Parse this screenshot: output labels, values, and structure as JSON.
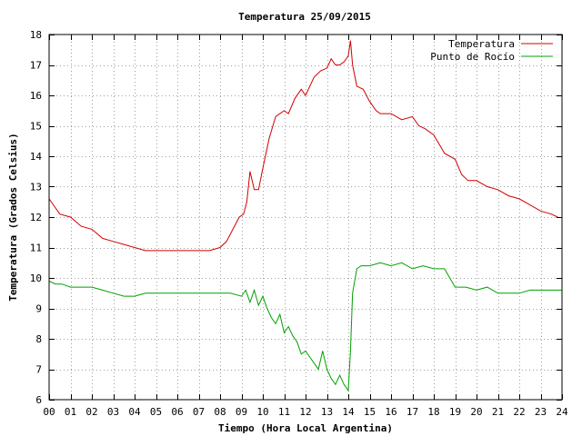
{
  "chart_data": {
    "type": "line",
    "title": "Temperatura 25/09/2015",
    "xlabel": "Tiempo (Hora Local Argentina)",
    "ylabel": "Temperatura (Grados Celsius)",
    "xlim": [
      0,
      24
    ],
    "ylim": [
      6,
      18
    ],
    "x_ticks": [
      "00",
      "01",
      "02",
      "03",
      "04",
      "05",
      "06",
      "07",
      "08",
      "09",
      "10",
      "11",
      "12",
      "13",
      "14",
      "15",
      "16",
      "17",
      "18",
      "19",
      "20",
      "21",
      "22",
      "23",
      "24"
    ],
    "y_ticks": [
      "6",
      "7",
      "8",
      "9",
      "10",
      "11",
      "12",
      "13",
      "14",
      "15",
      "16",
      "17",
      "18"
    ],
    "grid": true,
    "legend_position": "top-right",
    "series": [
      {
        "name": "Temperatura",
        "color": "#d00000",
        "x": [
          0,
          0.2,
          0.5,
          1.0,
          1.5,
          2.0,
          2.5,
          3.0,
          3.5,
          4.0,
          4.5,
          5.0,
          5.5,
          6.0,
          6.5,
          7.0,
          7.5,
          8.0,
          8.3,
          8.6,
          8.9,
          9.1,
          9.25,
          9.4,
          9.6,
          9.8,
          10.0,
          10.3,
          10.6,
          11.0,
          11.2,
          11.5,
          11.8,
          12.0,
          12.2,
          12.4,
          12.7,
          13.0,
          13.2,
          13.4,
          13.6,
          13.8,
          14.0,
          14.1,
          14.2,
          14.4,
          14.7,
          15.0,
          15.3,
          15.5,
          16.0,
          16.5,
          17.0,
          17.3,
          17.6,
          18.0,
          18.5,
          19.0,
          19.3,
          19.6,
          20.0,
          20.5,
          21.0,
          21.5,
          22.0,
          22.5,
          23.0,
          23.5,
          23.8
        ],
        "values": [
          12.6,
          12.4,
          12.1,
          12.0,
          11.7,
          11.6,
          11.3,
          11.2,
          11.1,
          11.0,
          10.9,
          10.9,
          10.9,
          10.9,
          10.9,
          10.9,
          10.9,
          11.0,
          11.2,
          11.6,
          12.0,
          12.1,
          12.5,
          13.5,
          12.9,
          12.9,
          13.6,
          14.6,
          15.3,
          15.5,
          15.4,
          15.9,
          16.2,
          16.0,
          16.3,
          16.6,
          16.8,
          16.9,
          17.2,
          17.0,
          17.0,
          17.1,
          17.3,
          17.8,
          17.0,
          16.3,
          16.2,
          15.8,
          15.5,
          15.4,
          15.4,
          15.2,
          15.3,
          15.0,
          14.9,
          14.7,
          14.1,
          13.9,
          13.4,
          13.2,
          13.2,
          13.0,
          12.9,
          12.7,
          12.6,
          12.4,
          12.2,
          12.1,
          12.0
        ]
      },
      {
        "name": "Punto de Rocío",
        "color": "#00a000",
        "x": [
          0,
          0.3,
          0.6,
          1.0,
          1.5,
          2.0,
          2.5,
          3.0,
          3.5,
          4.0,
          4.5,
          5.0,
          5.5,
          6.0,
          6.5,
          7.0,
          7.5,
          8.0,
          8.5,
          9.0,
          9.2,
          9.4,
          9.6,
          9.8,
          10.0,
          10.2,
          10.4,
          10.6,
          10.8,
          11.0,
          11.2,
          11.4,
          11.6,
          11.8,
          12.0,
          12.2,
          12.4,
          12.6,
          12.8,
          13.0,
          13.2,
          13.4,
          13.6,
          13.8,
          14.0,
          14.1,
          14.2,
          14.4,
          14.6,
          15.0,
          15.5,
          16.0,
          16.5,
          17.0,
          17.5,
          18.0,
          18.5,
          19.0,
          19.5,
          20.0,
          20.5,
          21.0,
          21.5,
          22.0,
          22.5,
          23.0,
          23.5,
          24.0
        ],
        "values": [
          9.9,
          9.8,
          9.8,
          9.7,
          9.7,
          9.7,
          9.6,
          9.5,
          9.4,
          9.4,
          9.5,
          9.5,
          9.5,
          9.5,
          9.5,
          9.5,
          9.5,
          9.5,
          9.5,
          9.4,
          9.6,
          9.2,
          9.6,
          9.1,
          9.4,
          9.0,
          8.7,
          8.5,
          8.8,
          8.2,
          8.4,
          8.1,
          7.9,
          7.5,
          7.6,
          7.4,
          7.2,
          7.0,
          7.6,
          7.0,
          6.7,
          6.5,
          6.8,
          6.5,
          6.3,
          7.6,
          9.5,
          10.3,
          10.4,
          10.4,
          10.5,
          10.4,
          10.5,
          10.3,
          10.4,
          10.3,
          10.3,
          9.7,
          9.7,
          9.6,
          9.7,
          9.5,
          9.5,
          9.5,
          9.6,
          9.6,
          9.6,
          9.6
        ]
      }
    ]
  }
}
